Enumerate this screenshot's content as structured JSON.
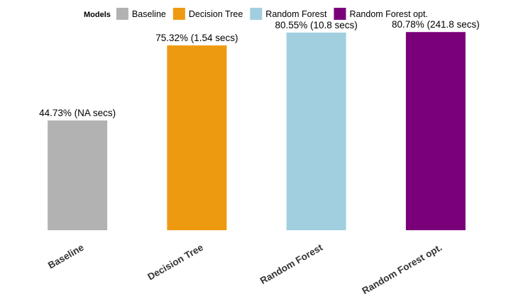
{
  "legend": {
    "title": "Models",
    "placement": "top"
  },
  "chart_data": {
    "type": "bar",
    "title": "",
    "xlabel": "",
    "ylabel": "",
    "ylim": [
      0,
      82
    ],
    "grid": false,
    "categories": [
      "Baseline",
      "Decision Tree",
      "Random Forest",
      "Random Forest opt."
    ],
    "values": [
      44.73,
      75.32,
      80.55,
      80.78
    ],
    "data_labels": [
      "44.73% (NA secs)",
      "75.32% (1.54 secs)",
      "80.55% (10.8 secs)",
      "80.78% (241.8 secs)"
    ],
    "colors": [
      "#b2b2b2",
      "#ee9a10",
      "#a1cfe0",
      "#7a007a"
    ]
  }
}
